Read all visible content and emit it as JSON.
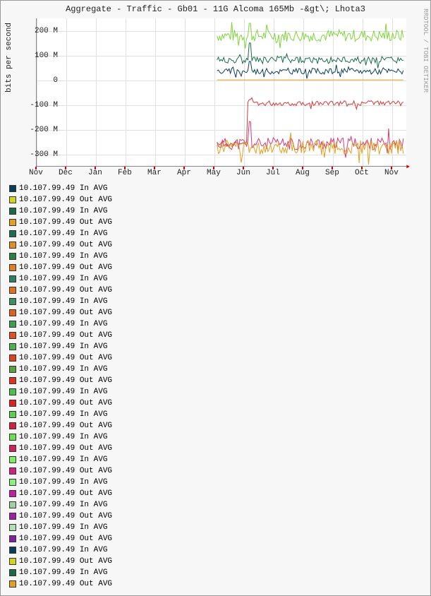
{
  "title": "Aggregate - Traffic - Gb01 - 11G Alcoma 165Mb -&gt\\; Lhota3",
  "ylabel": "bits per second",
  "watermark": "RRDTOOL / TOBI OETIKER",
  "chart": {
    "type": "line",
    "background_color": "#ffffff",
    "grid_color": "#e0e0e0",
    "border_color": "#888888",
    "ylim": [
      -350,
      250
    ],
    "yticks": [
      {
        "value": 200,
        "label": "200 M"
      },
      {
        "value": 100,
        "label": "100 M"
      },
      {
        "value": 0,
        "label": "0"
      },
      {
        "value": -100,
        "label": "-100 M"
      },
      {
        "value": -200,
        "label": "-200 M"
      },
      {
        "value": -300,
        "label": "-300 M"
      }
    ],
    "xticks": [
      "Nov",
      "Dec",
      "Jan",
      "Feb",
      "Mar",
      "Apr",
      "May",
      "Jun",
      "Jul",
      "Aug",
      "Sep",
      "Oct",
      "Nov"
    ],
    "series_upper": [
      {
        "color": "#7fd43a",
        "baseline": 180,
        "jitter": 25,
        "spike_at": 7.2,
        "spike_h": 50
      },
      {
        "color": "#1a6b4a",
        "baseline": 80,
        "jitter": 15,
        "spike_at": 7.2,
        "spike_h": 70
      },
      {
        "color": "#0a3d5c",
        "baseline": 35,
        "jitter": 12,
        "spike_at": 7.2,
        "spike_h": 40
      }
    ],
    "series_lower": [
      {
        "color": "#d43a3a",
        "baseline": -95,
        "jitter": 10,
        "start_low": -260,
        "spike_at": 7.2,
        "spike_h": 80
      },
      {
        "color": "#d43a7a",
        "baseline": -260,
        "jitter": 25,
        "spike_at": 7.2,
        "spike_h": 90
      },
      {
        "color": "#e0a020",
        "baseline": -275,
        "jitter": 30,
        "spike_at": 7.2,
        "spike_h": 0
      }
    ],
    "data_start_x": 6.1,
    "data_end_x": 12.4
  },
  "legend_colors": [
    "#0a3d5c",
    "#d4d020",
    "#1a6b4a",
    "#e0a020",
    "#1a7050",
    "#e09020",
    "#2a8040",
    "#e08020",
    "#2a8060",
    "#e07020",
    "#3a9060",
    "#e06020",
    "#3aa050",
    "#e05020",
    "#4ab050",
    "#e04020",
    "#5aa040",
    "#e03020",
    "#4ac050",
    "#e02020",
    "#5ad050",
    "#d02040",
    "#6ae050",
    "#d02060",
    "#7af060",
    "#d02080",
    "#8af080",
    "#c020a0",
    "#a0d0a0",
    "#a020a0",
    "#b0e0b0",
    "#8020a0",
    "#0a3d5c",
    "#d4d020",
    "#1a6b4a",
    "#e0a020"
  ],
  "legend_item_in": "10.107.99.49 In AVG",
  "legend_item_out": "10.107.99.49 Out AVG"
}
